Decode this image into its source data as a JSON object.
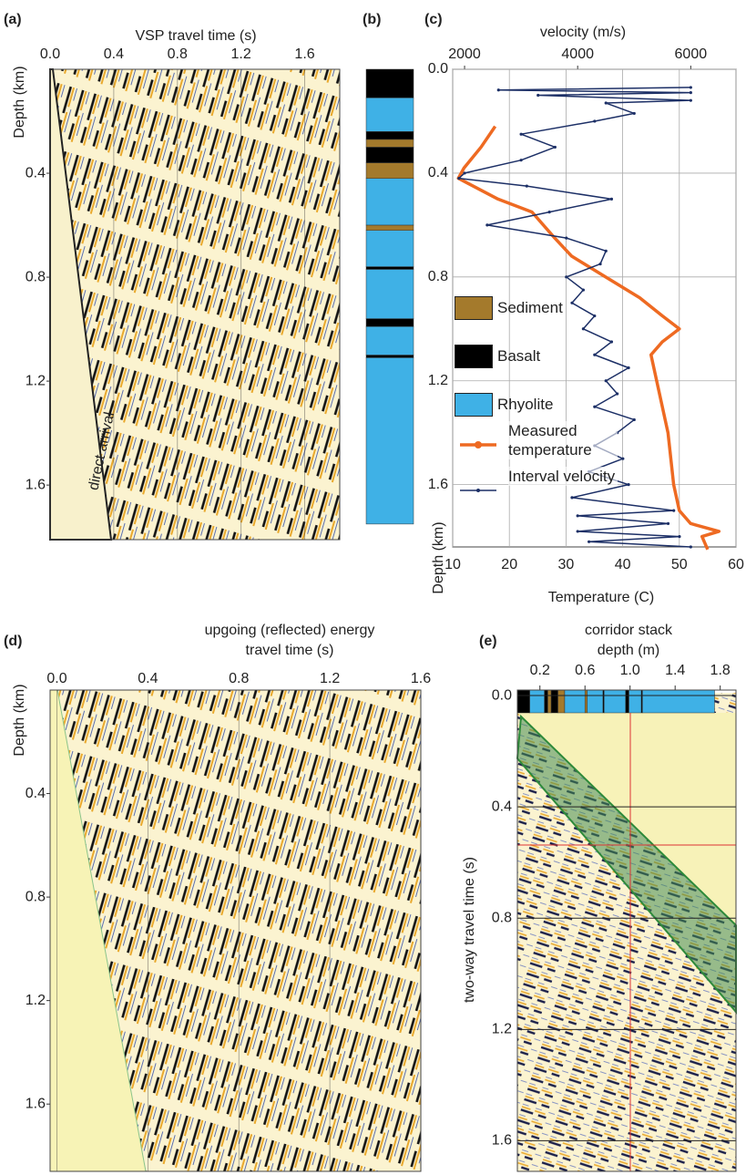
{
  "chart_data": [
    {
      "type": "seismic",
      "label": "(a)",
      "title": "VSP travel time (s)",
      "ylabel": "Depth (km)",
      "annotation": "direct arrival",
      "xlim": [
        0,
        1.82
      ],
      "xticks": [
        {
          "value": 0,
          "label": "0.0"
        },
        0.4,
        0.8,
        1.2,
        1.6
      ],
      "ylim": [
        0,
        1.81
      ],
      "yticks": [
        0.4,
        0.8,
        1.2,
        1.6
      ]
    },
    {
      "type": "lithology",
      "label": "(b)",
      "ylim": [
        0,
        1.81
      ],
      "layers": [
        {
          "top": 0,
          "bottom": 0.11,
          "rock": "Basalt"
        },
        {
          "top": 0.11,
          "bottom": 0.24,
          "rock": "Rhyolite"
        },
        {
          "top": 0.24,
          "bottom": 0.27,
          "rock": "Basalt"
        },
        {
          "top": 0.27,
          "bottom": 0.3,
          "rock": "Sediment"
        },
        {
          "top": 0.3,
          "bottom": 0.36,
          "rock": "Basalt"
        },
        {
          "top": 0.36,
          "bottom": 0.42,
          "rock": "Sediment"
        },
        {
          "top": 0.42,
          "bottom": 0.6,
          "rock": "Rhyolite"
        },
        {
          "top": 0.6,
          "bottom": 0.62,
          "rock": "Sediment"
        },
        {
          "top": 0.62,
          "bottom": 0.76,
          "rock": "Rhyolite"
        },
        {
          "top": 0.76,
          "bottom": 0.77,
          "rock": "Basalt"
        },
        {
          "top": 0.77,
          "bottom": 0.96,
          "rock": "Rhyolite"
        },
        {
          "top": 0.96,
          "bottom": 0.99,
          "rock": "Basalt"
        },
        {
          "top": 0.99,
          "bottom": 1.1,
          "rock": "Rhyolite"
        },
        {
          "top": 1.1,
          "bottom": 1.11,
          "rock": "Basalt"
        },
        {
          "top": 1.11,
          "bottom": 1.75,
          "rock": "Rhyolite"
        }
      ]
    },
    {
      "type": "line",
      "label": "(c)",
      "title": "velocity (m/s)",
      "xlabel": "Temperature (C)",
      "ylabel": "Depth (km)",
      "xlim": [
        1790,
        6800
      ],
      "xticks": [
        2000,
        4000,
        6000
      ],
      "x2lim": [
        10,
        60
      ],
      "x2ticks": [
        10,
        20,
        30,
        40,
        50,
        60
      ],
      "ylim": [
        0,
        1.84
      ],
      "yticks": [
        {
          "value": 0,
          "label": "0.0"
        },
        0.4,
        0.8,
        1.2,
        1.6
      ],
      "grid": true,
      "lithology_legend": [
        {
          "name": "Sediment",
          "color": "#a47a2c"
        },
        {
          "name": "Basalt",
          "color": "#000000"
        },
        {
          "name": "Rhyolite",
          "color": "#3fb1e6"
        }
      ],
      "series": [
        {
          "name": "Measured temperature",
          "color": "#ee6a22",
          "axis": "x2",
          "depth": [
            0.22,
            0.3,
            0.38,
            0.42,
            0.5,
            0.55,
            0.6,
            0.65,
            0.72,
            0.8,
            0.88,
            0.95,
            1.0,
            1.05,
            1.1,
            1.2,
            1.4,
            1.6,
            1.7,
            1.75,
            1.78,
            1.8,
            1.85
          ],
          "values": [
            17.5,
            15,
            12,
            11,
            18,
            24,
            26,
            28,
            31,
            37,
            43,
            47,
            50,
            47,
            45,
            46,
            48,
            49,
            50,
            52,
            57,
            54,
            55
          ]
        },
        {
          "name": "Interval velocity",
          "color": "#1c2f66",
          "depth": [
            0.07,
            0.08,
            0.09,
            0.1,
            0.12,
            0.13,
            0.17,
            0.2,
            0.25,
            0.3,
            0.35,
            0.4,
            0.42,
            0.45,
            0.5,
            0.55,
            0.6,
            0.65,
            0.7,
            0.75,
            0.8,
            0.85,
            0.9,
            0.95,
            1.0,
            1.05,
            1.1,
            1.15,
            1.2,
            1.25,
            1.3,
            1.35,
            1.4,
            1.45,
            1.5,
            1.55,
            1.6,
            1.65,
            1.7,
            1.72,
            1.75,
            1.78,
            1.8,
            1.82,
            1.84
          ],
          "values": [
            6000,
            2600,
            6000,
            3300,
            6000,
            4500,
            5000,
            4300,
            3000,
            3600,
            3000,
            2000,
            1900,
            3100,
            4600,
            3500,
            2400,
            3800,
            4500,
            4400,
            3800,
            4100,
            3900,
            4300,
            4100,
            4600,
            4300,
            4900,
            4500,
            4700,
            4300,
            5000,
            4700,
            4300,
            4800,
            4200,
            4900,
            3900,
            5700,
            4000,
            5600,
            4000,
            5800,
            4200,
            6000
          ]
        }
      ]
    },
    {
      "type": "seismic",
      "label": "(d)",
      "title": "upgoing  (reflected) energy",
      "subtitle": "travel time (s)",
      "ylabel": "Depth (km)",
      "xlim": [
        -0.03,
        1.6
      ],
      "xticks": [
        {
          "value": 0,
          "label": "0.0"
        },
        0.4,
        0.8,
        1.2,
        1.6
      ],
      "ylim": [
        0,
        1.86
      ],
      "yticks": [
        0.4,
        0.8,
        1.2,
        1.6
      ]
    },
    {
      "type": "corridor",
      "label": "(e)",
      "title": "corridor stack",
      "subtitle": "depth (m)",
      "ylabel": "two-way travel time (s)",
      "xlim": [
        0,
        1.94
      ],
      "xticks": [
        0.2,
        0.6,
        {
          "value": 1,
          "label": "1.0"
        },
        1.4,
        1.8
      ],
      "ylim": [
        -0.01,
        1.71
      ],
      "yticks": [
        {
          "value": 0,
          "label": "0.0"
        },
        0.4,
        0.8,
        1.2,
        1.6
      ]
    }
  ]
}
